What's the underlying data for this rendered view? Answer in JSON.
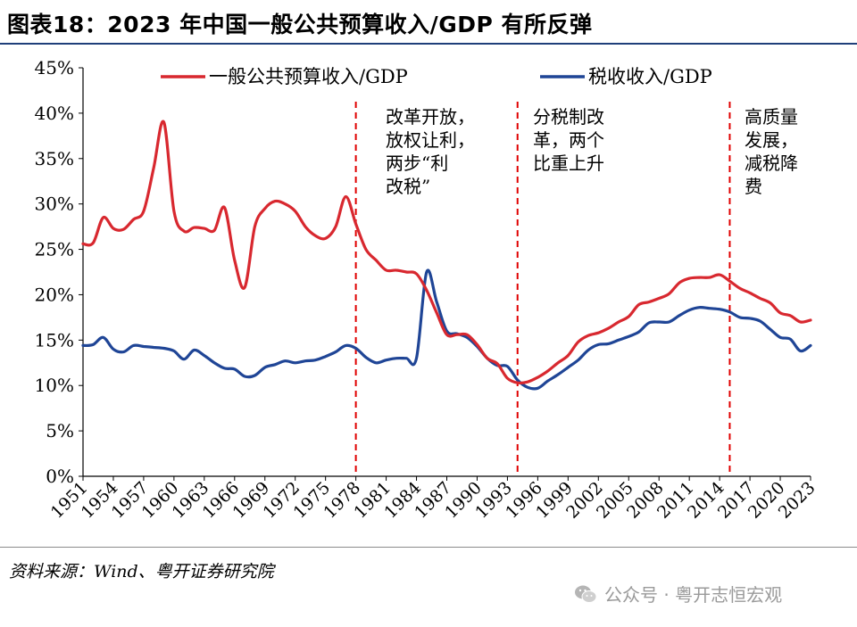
{
  "header": {
    "title": "图表18：2023 年中国一般公共预算收入/GDP 有所反弹"
  },
  "footer": {
    "source": "资料来源：Wind、粤开证券研究院",
    "watermark": "公众号 · 粤开志恒宏观"
  },
  "colors": {
    "red": "#d8282f",
    "blue": "#1f4596",
    "divider": "#e00000"
  },
  "chart_data": {
    "type": "line",
    "y_tick_labels": [
      "0%",
      "5%",
      "10%",
      "15%",
      "20%",
      "25%",
      "30%",
      "35%",
      "40%",
      "45%"
    ],
    "ylim": [
      0,
      45
    ],
    "xlim": [
      1951,
      2023
    ],
    "x_tick_labels": [
      "1951",
      "1954",
      "1957",
      "1960",
      "1963",
      "1966",
      "1969",
      "1972",
      "1975",
      "1978",
      "1981",
      "1984",
      "1987",
      "1990",
      "1993",
      "1996",
      "1999",
      "2002",
      "2005",
      "2008",
      "2011",
      "2014",
      "2017",
      "2020",
      "2023"
    ],
    "legend_position": "top",
    "series": [
      {
        "name": "一般公共预算收入/GDP",
        "color": "#d8282f",
        "x": [
          1951,
          1952,
          1953,
          1954,
          1955,
          1956,
          1957,
          1958,
          1959,
          1960,
          1961,
          1962,
          1963,
          1964,
          1965,
          1966,
          1967,
          1968,
          1969,
          1970,
          1971,
          1972,
          1973,
          1974,
          1975,
          1976,
          1977,
          1978,
          1979,
          1980,
          1981,
          1982,
          1983,
          1984,
          1985,
          1986,
          1987,
          1988,
          1989,
          1990,
          1991,
          1992,
          1993,
          1994,
          1995,
          1996,
          1997,
          1998,
          1999,
          2000,
          2001,
          2002,
          2003,
          2004,
          2005,
          2006,
          2007,
          2008,
          2009,
          2010,
          2011,
          2012,
          2013,
          2014,
          2015,
          2016,
          2017,
          2018,
          2019,
          2020,
          2021,
          2022,
          2023
        ],
        "y": [
          25.6,
          25.7,
          28.5,
          27.3,
          27.2,
          28.3,
          29.2,
          34.0,
          39.0,
          29.2,
          27.0,
          27.4,
          27.3,
          27.1,
          29.6,
          23.8,
          20.8,
          27.5,
          29.5,
          30.3,
          30.0,
          29.2,
          27.5,
          26.5,
          26.2,
          27.5,
          30.8,
          27.8,
          25.0,
          23.8,
          22.7,
          22.7,
          22.5,
          22.3,
          20.5,
          18.0,
          15.6,
          15.6,
          15.6,
          14.5,
          13.0,
          12.4,
          10.8,
          10.3,
          10.4,
          10.9,
          11.6,
          12.5,
          13.3,
          14.8,
          15.5,
          15.8,
          16.3,
          17.0,
          17.6,
          18.9,
          19.2,
          19.6,
          20.1,
          21.3,
          21.8,
          21.9,
          21.9,
          22.2,
          21.5,
          20.7,
          20.2,
          19.6,
          19.1,
          18.0,
          17.7,
          17.0,
          17.2
        ]
      },
      {
        "name": "税收收入/GDP",
        "color": "#1f4596",
        "x": [
          1951,
          1952,
          1953,
          1954,
          1955,
          1956,
          1957,
          1958,
          1959,
          1960,
          1961,
          1962,
          1963,
          1964,
          1965,
          1966,
          1967,
          1968,
          1969,
          1970,
          1971,
          1972,
          1973,
          1974,
          1975,
          1976,
          1977,
          1978,
          1979,
          1980,
          1981,
          1982,
          1983,
          1984,
          1985,
          1986,
          1987,
          1988,
          1989,
          1990,
          1991,
          1992,
          1993,
          1994,
          1995,
          1996,
          1997,
          1998,
          1999,
          2000,
          2001,
          2002,
          2003,
          2004,
          2005,
          2006,
          2007,
          2008,
          2009,
          2010,
          2011,
          2012,
          2013,
          2014,
          2015,
          2016,
          2017,
          2018,
          2019,
          2020,
          2021,
          2022,
          2023
        ],
        "y": [
          14.4,
          14.5,
          15.3,
          14.0,
          13.7,
          14.4,
          14.3,
          14.2,
          14.1,
          13.8,
          12.9,
          13.9,
          13.3,
          12.5,
          11.9,
          11.8,
          11.0,
          11.1,
          12.0,
          12.3,
          12.7,
          12.5,
          12.7,
          12.8,
          13.2,
          13.7,
          14.4,
          14.1,
          13.1,
          12.5,
          12.8,
          13.0,
          13.0,
          13.0,
          22.5,
          19.2,
          16.0,
          15.7,
          15.3,
          14.3,
          13.0,
          12.2,
          12.1,
          10.6,
          9.8,
          9.7,
          10.5,
          11.2,
          12.0,
          12.8,
          13.9,
          14.5,
          14.6,
          15.0,
          15.4,
          15.9,
          16.9,
          17.0,
          17.0,
          17.7,
          18.3,
          18.6,
          18.5,
          18.4,
          18.1,
          17.5,
          17.4,
          17.1,
          16.2,
          15.3,
          15.1,
          13.8,
          14.4
        ]
      }
    ],
    "dividers": [
      1978,
      1994,
      2015
    ],
    "annotations": [
      {
        "lines": [
          "改革开放，",
          "放权让利，",
          "两步“利",
          "改税”"
        ]
      },
      {
        "lines": [
          "分税制改",
          "革，两个",
          "比重上升"
        ]
      },
      {
        "lines": [
          "高质量",
          "发展，",
          "减税降",
          "费"
        ]
      }
    ]
  }
}
